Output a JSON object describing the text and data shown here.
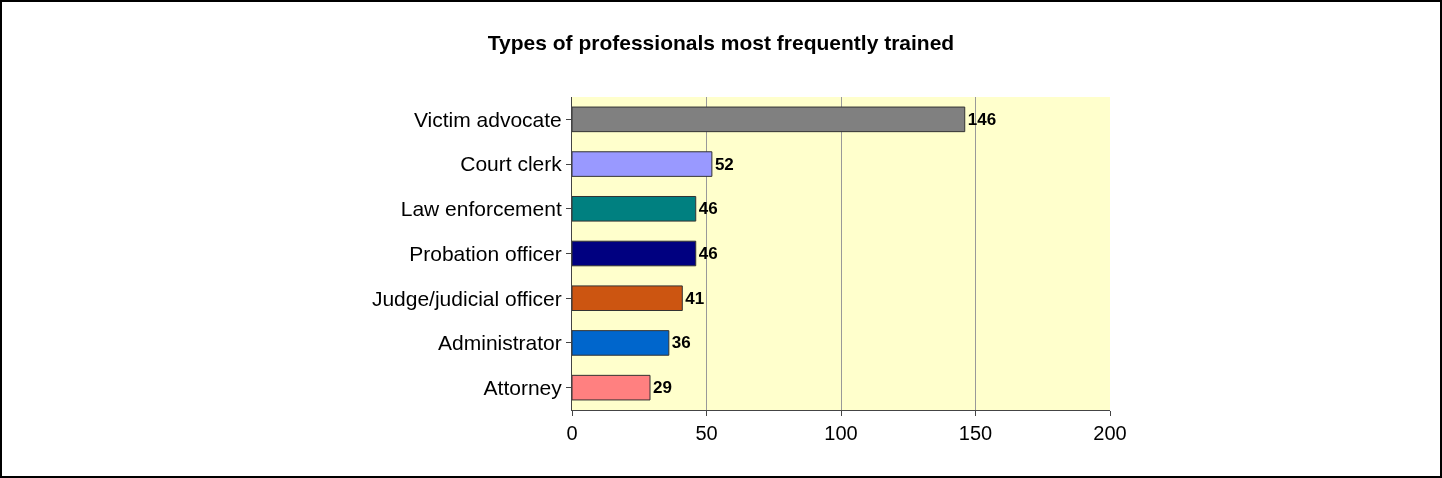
{
  "chart_data": {
    "type": "bar",
    "orientation": "horizontal",
    "title": "Types of professionals most frequently trained",
    "categories": [
      "Victim advocate",
      "Court clerk",
      "Law enforcement",
      "Probation officer",
      "Judge/judicial officer",
      "Administrator",
      "Attorney"
    ],
    "values": [
      146,
      52,
      46,
      46,
      41,
      36,
      29
    ],
    "colors": [
      "#808080",
      "#9999ff",
      "#008080",
      "#000080",
      "#cc5511",
      "#0066cc",
      "#ff8080"
    ],
    "xlim": [
      0,
      200
    ],
    "xticks": [
      0,
      50,
      100,
      150,
      200
    ],
    "grid": "x",
    "data_labels": true
  }
}
